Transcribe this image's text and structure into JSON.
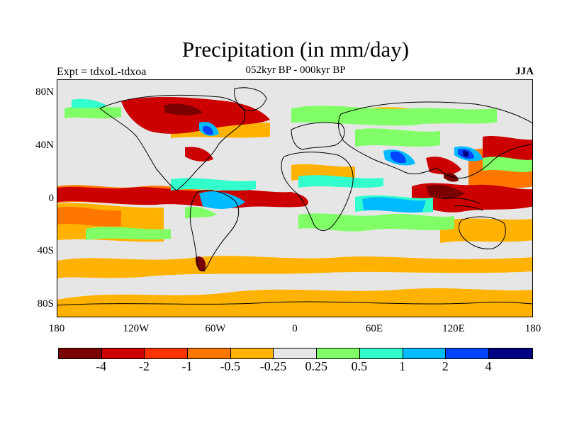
{
  "title": "Precipitation (in mm/day)",
  "subtitle": "052kyr BP - 000kyr BP",
  "experiment_label": "Expt = tdxoL-tdxoa",
  "season_label": "JJA",
  "lat_labels": [
    "80N",
    "40N",
    "0",
    "40S",
    "80S"
  ],
  "lon_labels": [
    "180",
    "120W",
    "60W",
    "0",
    "60E",
    "120E",
    "180"
  ],
  "colorbar": {
    "colors": [
      "#7a0000",
      "#cc0000",
      "#ff3300",
      "#ff7700",
      "#ffb300",
      "#e6e6e6",
      "#80ff66",
      "#33ffcc",
      "#00bbff",
      "#0044ff",
      "#000080"
    ],
    "labels": [
      "-4",
      "-2",
      "-1",
      "-0.5",
      "-0.25",
      "0.25",
      "0.5",
      "1",
      "2",
      "4"
    ]
  }
}
